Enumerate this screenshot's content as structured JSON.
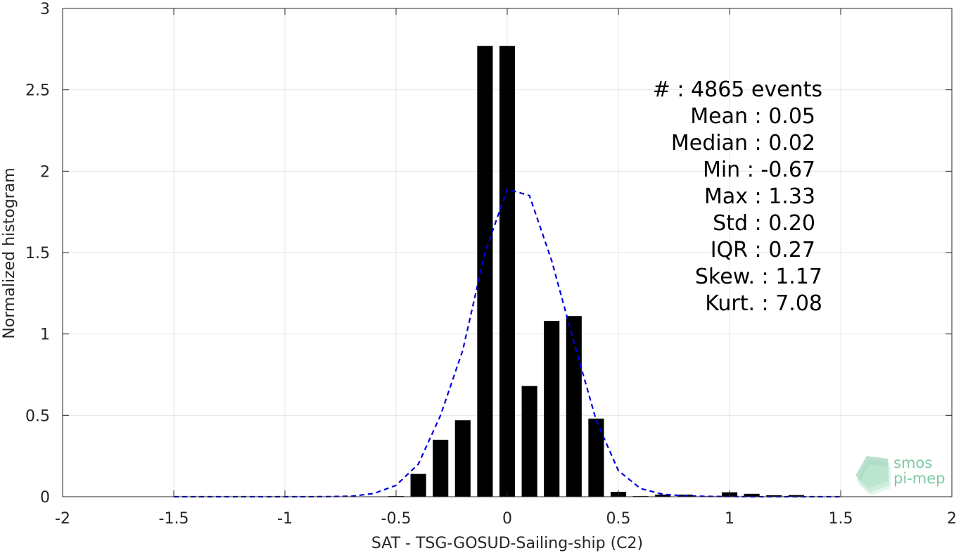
{
  "chart_data": {
    "type": "bar",
    "xlabel": "SAT - TSG-GOSUD-Sailing-ship (C2)",
    "ylabel": "Normalized histogram",
    "xlim": [
      -2,
      2
    ],
    "ylim": [
      0,
      3
    ],
    "xticks": [
      -2,
      -1.5,
      -1,
      -0.5,
      0,
      0.5,
      1,
      1.5,
      2
    ],
    "xtick_labels": [
      "-2",
      "-1.5",
      "-1",
      "-0.5",
      "0",
      "0.5",
      "1",
      "1.5",
      "2"
    ],
    "yticks": [
      0,
      0.5,
      1,
      1.5,
      2,
      2.5,
      3
    ],
    "ytick_labels": [
      "0",
      "0.5",
      "1",
      "1.5",
      "2",
      "2.5",
      "3"
    ],
    "grid": true,
    "bar_color": "#000000",
    "bar_width": 0.07,
    "bars": {
      "x": [
        -0.5,
        -0.4,
        -0.3,
        -0.2,
        -0.1,
        0.0,
        0.1,
        0.2,
        0.3,
        0.4,
        0.5,
        0.6,
        0.7,
        0.8,
        0.9,
        1.0,
        1.1,
        1.2,
        1.3
      ],
      "y": [
        0.004,
        0.14,
        0.35,
        0.47,
        2.77,
        2.77,
        0.68,
        1.08,
        1.11,
        0.48,
        0.03,
        0.004,
        0.013,
        0.013,
        0.003,
        0.027,
        0.018,
        0.009,
        0.01
      ]
    },
    "fit_curve": {
      "style": "dashed",
      "color": "#0000e0",
      "x": [
        -1.5,
        -1.4,
        -1.3,
        -1.2,
        -1.1,
        -1.0,
        -0.9,
        -0.8,
        -0.7,
        -0.6,
        -0.5,
        -0.4,
        -0.3,
        -0.2,
        -0.1,
        0.0,
        0.1,
        0.2,
        0.3,
        0.4,
        0.5,
        0.6,
        0.7,
        0.8,
        0.9,
        1.0,
        1.1,
        1.2,
        1.3,
        1.4,
        1.5
      ],
      "y": [
        0,
        0,
        0,
        0,
        0,
        0,
        0,
        0.001,
        0.003,
        0.02,
        0.07,
        0.2,
        0.5,
        0.9,
        1.5,
        1.89,
        1.85,
        1.45,
        0.95,
        0.47,
        0.16,
        0.05,
        0.015,
        0.005,
        0.002,
        0.001,
        0,
        0,
        0,
        0,
        0
      ]
    },
    "annotations": [
      {
        "label": "#  : 4865 events",
        "indent": false
      },
      {
        "label": "Mean : 0.05",
        "indent": true
      },
      {
        "label": "Median : 0.02",
        "indent": true
      },
      {
        "label": "Min : -0.67",
        "indent": true
      },
      {
        "label": "Max : 1.33",
        "indent": true
      },
      {
        "label": "Std : 0.20",
        "indent": true
      },
      {
        "label": "IQR : 0.27",
        "indent": true
      },
      {
        "label": "Skew. : 1.17",
        "indent": false
      },
      {
        "label": "Kurt. : 7.08",
        "indent": false
      }
    ]
  },
  "logo": {
    "line1": "smos",
    "line2": "pi-mep",
    "color": "#7fc8a4"
  }
}
